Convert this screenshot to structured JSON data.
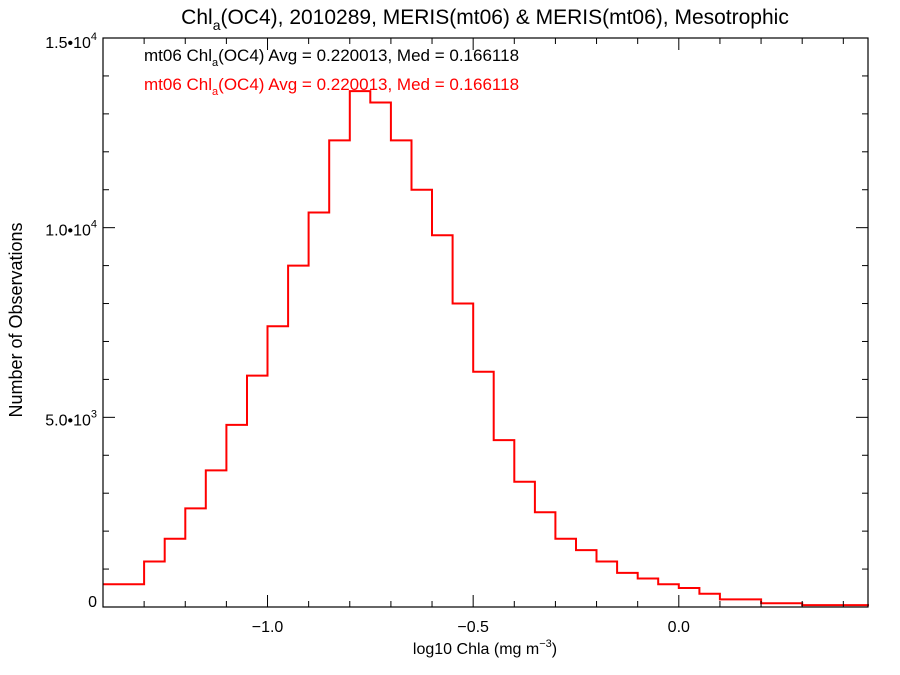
{
  "chart_data": {
    "type": "histogram-step",
    "title": {
      "prefix": "Chl",
      "sub": "a",
      "rest": "(OC4), 2010289, MERIS(mt06) & MERIS(mt06), Mesotrophic"
    },
    "xlabel": {
      "main": "log10 Chla (mg m",
      "sup": "−3",
      "end": ")"
    },
    "ylabel": "Number of Observations",
    "xlim": [
      -1.4,
      0.46
    ],
    "ylim": [
      0,
      15000
    ],
    "x_ticks": [
      {
        "value": -1.0,
        "label": "−1.0"
      },
      {
        "value": -0.5,
        "label": "−0.5"
      },
      {
        "value": 0.0,
        "label": "0.0"
      }
    ],
    "y_ticks": [
      {
        "value": 0,
        "label": "0",
        "sup": ""
      },
      {
        "value": 5000,
        "label": "5.0•10",
        "sup": "3"
      },
      {
        "value": 10000,
        "label": "1.0•10",
        "sup": "4"
      },
      {
        "value": 15000,
        "label": "1.5•10",
        "sup": "4"
      }
    ],
    "annotations": [
      {
        "prefix": "mt06 Chl",
        "sub": "a",
        "rest": "(OC4) Avg = 0.220013, Med = 0.166118",
        "color": "#000000"
      },
      {
        "prefix": "mt06 Chl",
        "sub": "a",
        "rest": "(OC4) Avg = 0.220013, Med = 0.166118",
        "color": "#ff0000"
      }
    ],
    "series": [
      {
        "color": "#ff0000",
        "x": [
          -1.4,
          -1.3,
          -1.25,
          -1.2,
          -1.15,
          -1.1,
          -1.05,
          -1.0,
          -0.95,
          -0.9,
          -0.85,
          -0.8,
          -0.75,
          -0.7,
          -0.65,
          -0.6,
          -0.55,
          -0.5,
          -0.45,
          -0.4,
          -0.35,
          -0.3,
          -0.25,
          -0.2,
          -0.15,
          -0.1,
          -0.05,
          0.0,
          0.05,
          0.1,
          0.2,
          0.3,
          0.46
        ],
        "values": [
          600,
          1200,
          1800,
          2600,
          3600,
          4800,
          6100,
          7400,
          9000,
          10400,
          12300,
          13600,
          13300,
          12300,
          11000,
          9800,
          8000,
          6200,
          4400,
          3300,
          2500,
          1800,
          1500,
          1200,
          900,
          750,
          600,
          500,
          350,
          200,
          100,
          50,
          20
        ]
      }
    ]
  }
}
